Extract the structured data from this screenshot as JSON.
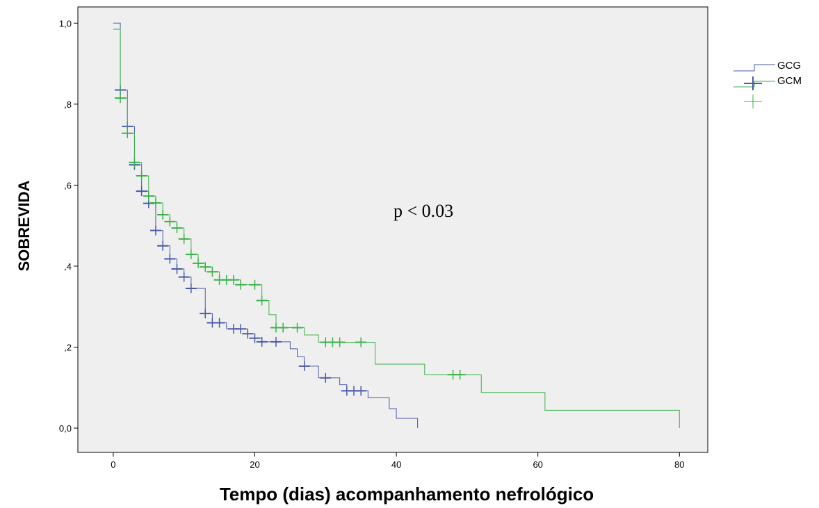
{
  "chart_data": {
    "type": "line",
    "subtype": "kaplan-meier",
    "title": "",
    "xlabel": "Tempo (dias) acompanhamento nefrológico",
    "ylabel": "SOBREVIDA",
    "xlim": [
      -5,
      84
    ],
    "ylim": [
      -0.06,
      1.04
    ],
    "x_ticks": [
      0,
      20,
      40,
      60,
      80
    ],
    "x_tick_labels": [
      "0",
      "20",
      "40",
      "60",
      "80"
    ],
    "y_ticks": [
      0.0,
      0.2,
      0.4,
      0.6,
      0.8,
      1.0
    ],
    "y_tick_labels": [
      "0,0",
      ",2",
      ",4",
      ",6",
      ",8",
      "1,0"
    ],
    "grid": false,
    "legend_position": "top-right, outside plot",
    "annotation": "p < 0.03",
    "series": [
      {
        "name": "GCG",
        "color": "#4a5aa8",
        "steps": [
          [
            0,
            1.0
          ],
          [
            1,
            0.835
          ],
          [
            2,
            0.745
          ],
          [
            3,
            0.65
          ],
          [
            4,
            0.585
          ],
          [
            5,
            0.555
          ],
          [
            6,
            0.488
          ],
          [
            7,
            0.45
          ],
          [
            8,
            0.418
          ],
          [
            9,
            0.393
          ],
          [
            10,
            0.373
          ],
          [
            11,
            0.345
          ],
          [
            13,
            0.283
          ],
          [
            14,
            0.26
          ],
          [
            16,
            0.245
          ],
          [
            19,
            0.233
          ],
          [
            20,
            0.222
          ],
          [
            21,
            0.213
          ],
          [
            23,
            0.213
          ],
          [
            25,
            0.196
          ],
          [
            26,
            0.176
          ],
          [
            27,
            0.153
          ],
          [
            29,
            0.124
          ],
          [
            32,
            0.107
          ],
          [
            33,
            0.092
          ],
          [
            36,
            0.075
          ],
          [
            39,
            0.048
          ],
          [
            40,
            0.024
          ],
          [
            43,
            0.0
          ]
        ],
        "censored": [
          [
            1,
            0.835
          ],
          [
            2,
            0.745
          ],
          [
            3,
            0.65
          ],
          [
            4,
            0.585
          ],
          [
            5,
            0.555
          ],
          [
            6,
            0.488
          ],
          [
            7,
            0.45
          ],
          [
            8,
            0.418
          ],
          [
            9,
            0.393
          ],
          [
            10,
            0.373
          ],
          [
            11,
            0.345
          ],
          [
            13,
            0.283
          ],
          [
            14,
            0.26
          ],
          [
            15,
            0.26
          ],
          [
            17,
            0.245
          ],
          [
            18,
            0.245
          ],
          [
            19,
            0.233
          ],
          [
            20,
            0.222
          ],
          [
            21,
            0.213
          ],
          [
            23,
            0.213
          ],
          [
            27,
            0.153
          ],
          [
            30,
            0.124
          ],
          [
            33,
            0.092
          ],
          [
            34,
            0.092
          ],
          [
            35,
            0.092
          ]
        ]
      },
      {
        "name": "GCM",
        "color": "#3bb24a",
        "steps": [
          [
            0,
            0.985
          ],
          [
            1,
            0.815
          ],
          [
            2,
            0.728
          ],
          [
            3,
            0.656
          ],
          [
            4,
            0.623
          ],
          [
            5,
            0.573
          ],
          [
            6,
            0.556
          ],
          [
            7,
            0.527
          ],
          [
            8,
            0.51
          ],
          [
            9,
            0.494
          ],
          [
            10,
            0.467
          ],
          [
            11,
            0.429
          ],
          [
            12,
            0.407
          ],
          [
            13,
            0.398
          ],
          [
            14,
            0.386
          ],
          [
            15,
            0.366
          ],
          [
            18,
            0.354
          ],
          [
            21,
            0.315
          ],
          [
            22,
            0.28
          ],
          [
            23,
            0.248
          ],
          [
            27,
            0.23
          ],
          [
            29,
            0.212
          ],
          [
            37,
            0.158
          ],
          [
            44,
            0.132
          ],
          [
            52,
            0.088
          ],
          [
            61,
            0.044
          ],
          [
            80,
            0.0
          ]
        ],
        "censored": [
          [
            1,
            0.815
          ],
          [
            2,
            0.728
          ],
          [
            3,
            0.656
          ],
          [
            4,
            0.623
          ],
          [
            5,
            0.573
          ],
          [
            6,
            0.556
          ],
          [
            7,
            0.527
          ],
          [
            8,
            0.51
          ],
          [
            9,
            0.494
          ],
          [
            10,
            0.467
          ],
          [
            11,
            0.429
          ],
          [
            12,
            0.407
          ],
          [
            13,
            0.398
          ],
          [
            14,
            0.386
          ],
          [
            15,
            0.366
          ],
          [
            16,
            0.366
          ],
          [
            17,
            0.366
          ],
          [
            18,
            0.354
          ],
          [
            20,
            0.354
          ],
          [
            21,
            0.315
          ],
          [
            23,
            0.248
          ],
          [
            24,
            0.248
          ],
          [
            26,
            0.248
          ],
          [
            30,
            0.212
          ],
          [
            31,
            0.212
          ],
          [
            32,
            0.212
          ],
          [
            35,
            0.212
          ],
          [
            48,
            0.132
          ],
          [
            49,
            0.132
          ]
        ]
      }
    ]
  },
  "legend": {
    "line_labels": [
      "GCG",
      "GCM"
    ]
  }
}
